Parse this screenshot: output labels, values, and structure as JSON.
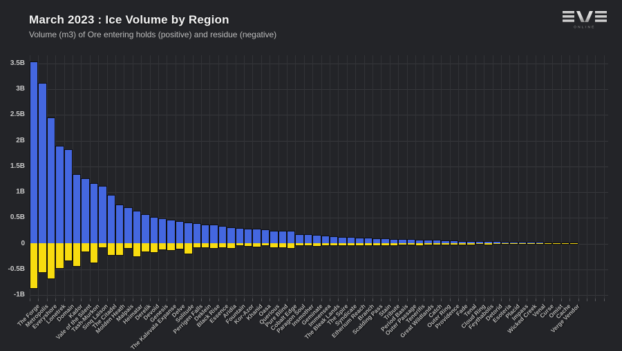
{
  "header": {
    "title": "March 2023 : Ice Volume by Region",
    "subtitle": "Volume (m3) of Ore entering holds (positive) and residue (negative)",
    "logo": {
      "brand": "EVE",
      "sub": "ONLINE"
    }
  },
  "colors": {
    "background": "#232428",
    "positive_bar": "#4467e0",
    "negative_bar": "#f8dc0f",
    "grid": "#37383c",
    "title_text": "#f2f2f2",
    "subtitle_text": "#bdbdbd",
    "axis_text": "#c9c9c9",
    "x_label_text": "#b6b6b6"
  },
  "chart_data": {
    "type": "bar",
    "title": "March 2023 : Ice Volume by Region",
    "subtitle": "Volume (m3) of Ore entering holds (positive) and residue (negative)",
    "unit": "billions of m3",
    "grid": true,
    "legend": "none",
    "ylim": [
      -1.15,
      3.66
    ],
    "y_ticks": {
      "values": [
        3.5,
        3,
        2.5,
        2,
        1.5,
        1,
        0.5,
        0,
        -0.5,
        -1
      ],
      "labels": [
        "3.5B",
        "3B",
        "2.5B",
        "2B",
        "1.5B",
        "1B",
        "0.5B",
        "0",
        "-0.5B",
        "-1B"
      ]
    },
    "categories": [
      "The Forge",
      "Metropolis",
      "Everyshore",
      "Lonetrek",
      "Domain",
      "Kador",
      "Vale of the Silent",
      "Tash-Murkon",
      "Sinq Laison",
      "The Citadel",
      "Molden Heath",
      "Malpais",
      "Heimatar",
      "Derelik",
      "Devoid",
      "Genesis",
      "The Kalevala Expanse",
      "Delve",
      "Solitude",
      "Perrigen Falls",
      "Deklein",
      "Black Rise",
      "Essence",
      "Aridia",
      "Fountain",
      "Kor-Azor",
      "Khanid",
      "Oasa",
      "Querious",
      "Pure Blind",
      "Cobalt Edge",
      "Paragon Soul",
      "Insmother",
      "Geminate",
      "Immensea",
      "The Bleak Lands",
      "The Spire",
      "Syndicate",
      "Etherium Reach",
      "Branch",
      "Scalding Pass",
      "Stain",
      "Tribute",
      "Period Basis",
      "Outer Passage",
      "Tenerifis",
      "Great Wildlands",
      "Catch",
      "Outer Ring",
      "Providence",
      "Fade",
      "Tenal",
      "Cloud Ring",
      "Feythabolis",
      "Detorid",
      "Esoteria",
      "Placid",
      "Impass",
      "Wicked Creek",
      "Venal",
      "Curse",
      "Omist",
      "Cache",
      "Verge Vendor"
    ],
    "series": [
      {
        "name": "Ore entering holds (positive)",
        "color": "#4467e0",
        "values": [
          3.52,
          3.11,
          2.43,
          1.89,
          1.82,
          1.33,
          1.26,
          1.16,
          1.11,
          0.93,
          0.74,
          0.69,
          0.63,
          0.56,
          0.51,
          0.48,
          0.45,
          0.42,
          0.4,
          0.38,
          0.36,
          0.35,
          0.33,
          0.3,
          0.29,
          0.28,
          0.27,
          0.26,
          0.24,
          0.24,
          0.23,
          0.17,
          0.17,
          0.15,
          0.14,
          0.13,
          0.12,
          0.11,
          0.1,
          0.1,
          0.09,
          0.085,
          0.08,
          0.075,
          0.07,
          0.065,
          0.06,
          0.055,
          0.05,
          0.045,
          0.04,
          0.04,
          0.035,
          0.035,
          0.03,
          0.025,
          0.02,
          0.02,
          0.018,
          0.015,
          0.012,
          0.01,
          0.008,
          0.005
        ]
      },
      {
        "name": "Residue (negative)",
        "color": "#f8dc0f",
        "values": [
          -0.86,
          -0.56,
          -0.68,
          -0.48,
          -0.33,
          -0.44,
          -0.16,
          -0.37,
          -0.08,
          -0.22,
          -0.22,
          -0.09,
          -0.25,
          -0.15,
          -0.17,
          -0.12,
          -0.13,
          -0.1,
          -0.2,
          -0.08,
          -0.08,
          -0.09,
          -0.08,
          -0.09,
          -0.03,
          -0.05,
          -0.06,
          -0.04,
          -0.08,
          -0.07,
          -0.09,
          -0.04,
          -0.04,
          -0.05,
          -0.03,
          -0.04,
          -0.03,
          -0.04,
          -0.03,
          -0.04,
          -0.03,
          -0.03,
          -0.03,
          -0.02,
          -0.02,
          -0.03,
          -0.02,
          -0.02,
          -0.02,
          -0.02,
          -0.015,
          -0.015,
          -0.01,
          -0.015,
          -0.01,
          -0.01,
          -0.01,
          -0.008,
          -0.008,
          -0.005,
          -0.005,
          -0.004,
          -0.003,
          -0.002
        ]
      }
    ]
  }
}
